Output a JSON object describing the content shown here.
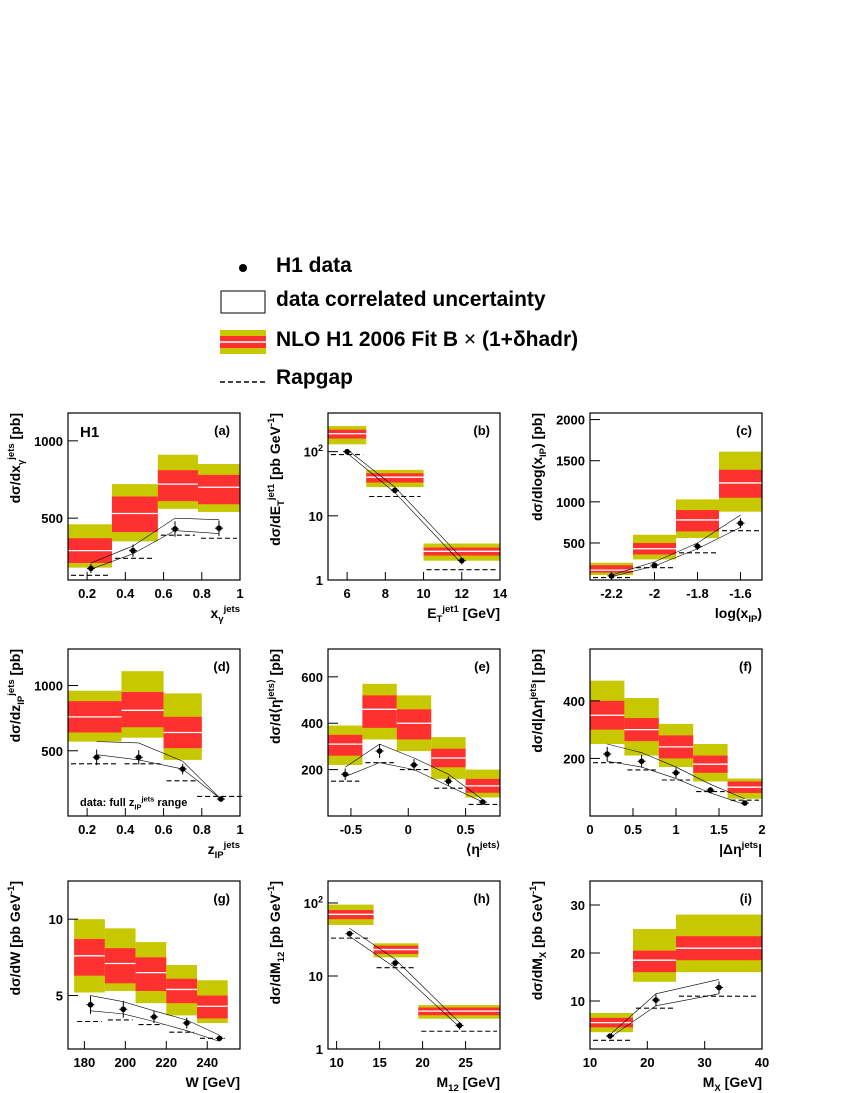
{
  "legend": {
    "data_label": "H1 data",
    "unc_label": "data correlated uncertainty",
    "nlo_label": "NLO H1 2006 Fit B",
    "nlo_suffix": " (1+δhadr)",
    "rapgap_label": "Rapgap"
  },
  "colors": {
    "yellow": "#c8c800",
    "red": "#ff3030",
    "white_line": "#ffffff",
    "data": "#000000"
  },
  "chart_data": [
    {
      "id": "a",
      "type": "bar",
      "panel_label": "(a)",
      "experiment": "H1",
      "ylabel": "dσ/dx_γ^jets [pb]",
      "xlabel": "x_γ^jets",
      "xlim": [
        0.1,
        1.0
      ],
      "ylim": [
        100,
        1180
      ],
      "log": false,
      "xticks": [
        0.2,
        0.4,
        0.6,
        0.8,
        1
      ],
      "xticklabels": [
        "0.2",
        "0.4",
        "0.6",
        "0.8",
        "1"
      ],
      "yticks": [
        500,
        1000
      ],
      "yticklabels": [
        "500",
        "1000"
      ],
      "bins": [
        [
          0.1,
          0.33
        ],
        [
          0.33,
          0.57
        ],
        [
          0.57,
          0.78
        ],
        [
          0.78,
          1.0
        ]
      ],
      "nlo_central": [
        290,
        530,
        720,
        700
      ],
      "nlo_red": [
        [
          210,
          370
        ],
        [
          410,
          640
        ],
        [
          610,
          810
        ],
        [
          590,
          780
        ]
      ],
      "nlo_yellow": [
        [
          180,
          460
        ],
        [
          350,
          720
        ],
        [
          560,
          910
        ],
        [
          540,
          850
        ]
      ],
      "data_x": [
        0.22,
        0.44,
        0.66,
        0.89
      ],
      "data_y": [
        175,
        290,
        430,
        435
      ],
      "data_err": [
        30,
        40,
        50,
        50
      ],
      "unc_upper": [
        210,
        320,
        500,
        490
      ],
      "unc_lower": [
        170,
        270,
        420,
        400
      ],
      "rapgap": [
        130,
        240,
        390,
        370
      ]
    },
    {
      "id": "b",
      "type": "bar",
      "panel_label": "(b)",
      "ylabel": "dσ/dE_T^jet1 [pb GeV^-1]",
      "xlabel": "E_T^jet1 [GeV]",
      "xlim": [
        5,
        14
      ],
      "ylim": [
        1,
        400
      ],
      "log": true,
      "xticks": [
        6,
        8,
        10,
        12,
        14
      ],
      "xticklabels": [
        "6",
        "8",
        "10",
        "12",
        "14"
      ],
      "yticks": [
        1,
        10,
        100
      ],
      "yticklabels": [
        "1",
        "10",
        "10^2"
      ],
      "bins": [
        [
          5,
          7
        ],
        [
          7,
          10
        ],
        [
          10,
          14
        ]
      ],
      "nlo_central": [
        190,
        40,
        2.8
      ],
      "nlo_red": [
        [
          160,
          220
        ],
        [
          33,
          46
        ],
        [
          2.4,
          3.2
        ]
      ],
      "nlo_yellow": [
        [
          130,
          250
        ],
        [
          28,
          52
        ],
        [
          2.0,
          3.7
        ]
      ],
      "data_x": [
        6.0,
        8.5,
        12.0
      ],
      "data_y": [
        100,
        25,
        2.0
      ],
      "data_err": [
        8,
        2.5,
        0.25
      ],
      "unc_upper": [
        108,
        28,
        2.2
      ],
      "unc_lower": [
        95,
        23,
        1.8
      ],
      "rapgap": [
        90,
        20,
        1.45
      ]
    },
    {
      "id": "c",
      "type": "bar",
      "panel_label": "(c)",
      "ylabel": "dσ/dlog(x_IP) [pb]",
      "xlabel": "log(x_IP)",
      "xlim": [
        -2.3,
        -1.5
      ],
      "ylim": [
        50,
        2080
      ],
      "log": false,
      "xticks": [
        -2.2,
        -2.0,
        -1.8,
        -1.6
      ],
      "xticklabels": [
        "-2.2",
        "-2",
        "-1.8",
        "-1.6"
      ],
      "yticks": [
        500,
        1000,
        1500,
        2000
      ],
      "yticklabels": [
        "500",
        "1000",
        "1500",
        "2000"
      ],
      "bins": [
        [
          -2.3,
          -2.1
        ],
        [
          -2.1,
          -1.9
        ],
        [
          -1.9,
          -1.7
        ],
        [
          -1.7,
          -1.5
        ]
      ],
      "nlo_central": [
        170,
        430,
        780,
        1230
      ],
      "nlo_red": [
        [
          140,
          230
        ],
        [
          360,
          500
        ],
        [
          640,
          900
        ],
        [
          1050,
          1390
        ]
      ],
      "nlo_yellow": [
        [
          110,
          260
        ],
        [
          300,
          600
        ],
        [
          560,
          1030
        ],
        [
          880,
          1610
        ]
      ],
      "data_x": [
        -2.2,
        -2.0,
        -1.8,
        -1.6
      ],
      "data_y": [
        100,
        230,
        460,
        740
      ],
      "data_err": [
        15,
        30,
        45,
        60
      ],
      "unc_upper": [
        110,
        270,
        500,
        840
      ],
      "unc_lower": [
        90,
        220,
        430,
        690
      ],
      "rapgap": [
        80,
        200,
        380,
        650
      ]
    },
    {
      "id": "d",
      "type": "bar",
      "panel_label": "(d)",
      "ylabel": "dσ/dz_IP^jets [pb]",
      "xlabel": "z_IP^jets",
      "annotation": "data: full z_IP^jets range",
      "xlim": [
        0.1,
        1.0
      ],
      "ylim": [
        0,
        1280
      ],
      "log": false,
      "xticks": [
        0.2,
        0.4,
        0.6,
        0.8,
        1
      ],
      "xticklabels": [
        "0.2",
        "0.4",
        "0.6",
        "0.8",
        "1"
      ],
      "yticks": [
        500,
        1000
      ],
      "yticklabels": [
        "500",
        "1000"
      ],
      "bins": [
        [
          0.1,
          0.38
        ],
        [
          0.38,
          0.6
        ],
        [
          0.6,
          0.8
        ]
      ],
      "nlo_central": [
        760,
        810,
        640
      ],
      "nlo_red": [
        [
          640,
          880
        ],
        [
          680,
          950
        ],
        [
          520,
          760
        ]
      ],
      "nlo_yellow": [
        [
          570,
          960
        ],
        [
          600,
          1110
        ],
        [
          430,
          940
        ]
      ],
      "data_x": [
        0.25,
        0.47,
        0.7,
        0.9
      ],
      "data_y": [
        450,
        450,
        360,
        130
      ],
      "data_err": [
        60,
        55,
        40,
        15
      ],
      "unc_upper": [
        570,
        560,
        420,
        130
      ],
      "unc_lower": [
        470,
        430,
        360,
        130
      ],
      "rapgap": [
        400,
        400,
        270,
        150
      ]
    },
    {
      "id": "e",
      "type": "bar",
      "panel_label": "(e)",
      "ylabel": "dσ/d⟨η^jets⟩ [pb]",
      "xlabel": "⟨η^jets⟩",
      "xlim": [
        -0.7,
        0.8
      ],
      "ylim": [
        0,
        720
      ],
      "log": false,
      "xticks": [
        -0.5,
        0,
        0.5
      ],
      "xticklabels": [
        "-0.5",
        "0",
        "0.5"
      ],
      "yticks": [
        200,
        400,
        600
      ],
      "yticklabels": [
        "200",
        "400",
        "600"
      ],
      "bins": [
        [
          -0.7,
          -0.4
        ],
        [
          -0.4,
          -0.1
        ],
        [
          -0.1,
          0.2
        ],
        [
          0.2,
          0.5
        ],
        [
          0.5,
          0.8
        ]
      ],
      "nlo_central": [
        310,
        460,
        400,
        250,
        130
      ],
      "nlo_red": [
        [
          260,
          350
        ],
        [
          380,
          520
        ],
        [
          330,
          460
        ],
        [
          210,
          290
        ],
        [
          100,
          160
        ]
      ],
      "nlo_yellow": [
        [
          220,
          390
        ],
        [
          330,
          570
        ],
        [
          280,
          520
        ],
        [
          160,
          340
        ],
        [
          80,
          200
        ]
      ],
      "data_x": [
        -0.55,
        -0.25,
        0.05,
        0.35,
        0.65
      ],
      "data_y": [
        180,
        280,
        220,
        150,
        60
      ],
      "data_err": [
        25,
        30,
        25,
        20,
        10
      ],
      "unc_upper": [
        210,
        310,
        250,
        180,
        70
      ],
      "unc_lower": [
        170,
        230,
        200,
        130,
        60
      ],
      "rapgap": [
        150,
        230,
        200,
        120,
        50
      ]
    },
    {
      "id": "f",
      "type": "bar",
      "panel_label": "(f)",
      "ylabel": "dσ/d|Δη^jets| [pb]",
      "xlabel": "|Δη^jets|",
      "xlim": [
        0,
        2
      ],
      "ylim": [
        0,
        580
      ],
      "log": false,
      "xticks": [
        0,
        0.5,
        1,
        1.5,
        2
      ],
      "xticklabels": [
        "0",
        "0.5",
        "1",
        "1.5",
        "2"
      ],
      "yticks": [
        200,
        400
      ],
      "yticklabels": [
        "200",
        "400"
      ],
      "bins": [
        [
          0,
          0.4
        ],
        [
          0.4,
          0.8
        ],
        [
          0.8,
          1.2
        ],
        [
          1.2,
          1.6
        ],
        [
          1.6,
          2.0
        ]
      ],
      "nlo_central": [
        350,
        300,
        240,
        180,
        100
      ],
      "nlo_red": [
        [
          300,
          400
        ],
        [
          260,
          340
        ],
        [
          200,
          280
        ],
        [
          150,
          210
        ],
        [
          80,
          120
        ]
      ],
      "nlo_yellow": [
        [
          250,
          470
        ],
        [
          210,
          410
        ],
        [
          170,
          320
        ],
        [
          120,
          250
        ],
        [
          60,
          130
        ]
      ],
      "data_x": [
        0.2,
        0.6,
        1.0,
        1.4,
        1.8
      ],
      "data_y": [
        215,
        190,
        150,
        90,
        45
      ],
      "data_err": [
        25,
        22,
        18,
        10,
        6
      ],
      "unc_upper": [
        250,
        220,
        170,
        110,
        60
      ],
      "unc_lower": [
        190,
        170,
        130,
        80,
        40
      ],
      "rapgap": [
        185,
        160,
        125,
        85,
        55
      ]
    },
    {
      "id": "g",
      "type": "bar",
      "panel_label": "(g)",
      "ylabel": "dσ/dW [pb GeV^-1]",
      "xlabel": "W [GeV]",
      "xlim": [
        172,
        256
      ],
      "ylim": [
        1.5,
        12.5
      ],
      "log": false,
      "xticks": [
        180,
        200,
        220,
        240
      ],
      "xticklabels": [
        "180",
        "200",
        "220",
        "240"
      ],
      "yticks": [
        5,
        10
      ],
      "yticklabels": [
        "5",
        "10"
      ],
      "bins": [
        [
          175,
          190
        ],
        [
          190,
          205
        ],
        [
          205,
          220
        ],
        [
          220,
          235
        ],
        [
          235,
          250
        ]
      ],
      "nlo_central": [
        7.6,
        7.1,
        6.5,
        5.4,
        4.3
      ],
      "nlo_red": [
        [
          6.3,
          8.7
        ],
        [
          5.8,
          8.1
        ],
        [
          5.3,
          7.5
        ],
        [
          4.5,
          6.1
        ],
        [
          3.5,
          5.0
        ]
      ],
      "nlo_yellow": [
        [
          5.2,
          10.0
        ],
        [
          5.3,
          9.4
        ],
        [
          4.5,
          8.5
        ],
        [
          3.7,
          7.0
        ],
        [
          3.2,
          6.0
        ]
      ],
      "data_x": [
        183,
        199,
        214,
        230,
        246
      ],
      "data_y": [
        4.4,
        4.1,
        3.6,
        3.2,
        2.2
      ],
      "data_err": [
        0.6,
        0.55,
        0.4,
        0.35,
        0.15
      ],
      "unc_upper": [
        5.0,
        4.6,
        4.0,
        3.4,
        2.4
      ],
      "unc_lower": [
        4.0,
        3.8,
        3.3,
        2.7,
        2.0
      ],
      "rapgap": [
        3.3,
        3.4,
        3.1,
        2.6,
        2.2
      ]
    },
    {
      "id": "h",
      "type": "bar",
      "panel_label": "(h)",
      "ylabel": "dσ/dM_12 [pb GeV^-1]",
      "xlabel": "M_12 [GeV]",
      "xlim": [
        9,
        29
      ],
      "ylim": [
        1,
        200
      ],
      "log": true,
      "xticks": [
        10,
        15,
        20,
        25
      ],
      "xticklabels": [
        "10",
        "15",
        "20",
        "25"
      ],
      "yticks": [
        1,
        10,
        100
      ],
      "yticklabels": [
        "1",
        "10",
        "10^2"
      ],
      "bins": [
        [
          9,
          14.3
        ],
        [
          14.3,
          19.5
        ],
        [
          19.5,
          29
        ]
      ],
      "nlo_central": [
        70,
        23,
        3.3
      ],
      "nlo_red": [
        [
          60,
          80
        ],
        [
          20,
          26
        ],
        [
          2.9,
          3.7
        ]
      ],
      "nlo_yellow": [
        [
          50,
          95
        ],
        [
          18,
          28
        ],
        [
          2.6,
          4.0
        ]
      ],
      "data_x": [
        11.5,
        16.8,
        24.3
      ],
      "data_y": [
        38,
        15,
        2.1
      ],
      "data_err": [
        3,
        1.5,
        0.25
      ],
      "unc_upper": [
        45,
        17,
        2.3
      ],
      "unc_lower": [
        35,
        13,
        2.0
      ],
      "rapgap": [
        33,
        13,
        1.75
      ]
    },
    {
      "id": "i",
      "type": "bar",
      "panel_label": "(i)",
      "ylabel": "dσ/dM_X [pb GeV^-1]",
      "xlabel": "M_X [GeV]",
      "xlim": [
        10,
        40
      ],
      "ylim": [
        0,
        35
      ],
      "log": false,
      "xticks": [
        10,
        20,
        30,
        40
      ],
      "xticklabels": [
        "10",
        "20",
        "30",
        "40"
      ],
      "yticks": [
        10,
        20,
        30
      ],
      "yticklabels": [
        "10",
        "20",
        "30"
      ],
      "bins": [
        [
          10,
          17.5
        ],
        [
          17.5,
          25
        ],
        [
          25,
          40
        ]
      ],
      "nlo_central": [
        5.5,
        18.5,
        21
      ],
      "nlo_red": [
        [
          4.5,
          6.5
        ],
        [
          16.0,
          20.5
        ],
        [
          18.5,
          23.5
        ]
      ],
      "nlo_yellow": [
        [
          3.5,
          7.5
        ],
        [
          14.0,
          25.0
        ],
        [
          16.0,
          28.0
        ]
      ],
      "data_x": [
        13.5,
        21.5,
        32.5
      ],
      "data_y": [
        2.7,
        10.2,
        12.8
      ],
      "data_err": [
        0.4,
        1.2,
        1.3
      ],
      "unc_upper": [
        3.0,
        11.5,
        14.5
      ],
      "unc_lower": [
        2.4,
        9.0,
        11.5
      ],
      "rapgap": [
        1.8,
        8.5,
        11.0
      ]
    }
  ]
}
